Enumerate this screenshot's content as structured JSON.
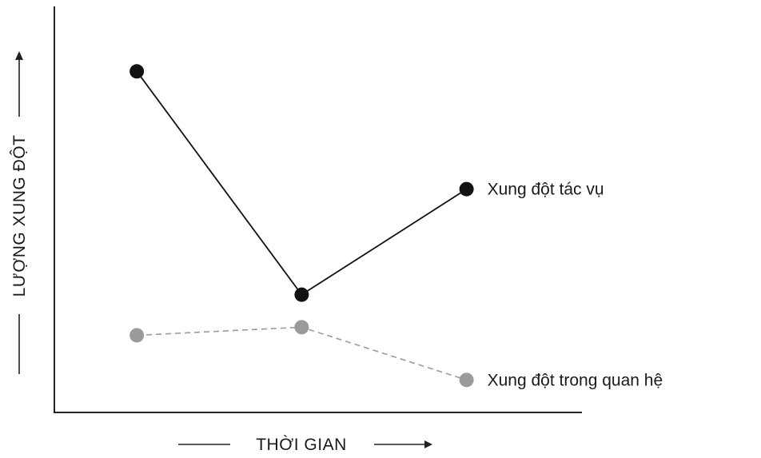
{
  "chart_data": {
    "type": "line",
    "title": "",
    "xlabel": "THỜI GIAN",
    "ylabel": "LƯỢNG XUNG ĐỘT",
    "x": [
      1,
      2,
      3
    ],
    "xlim": [
      0.5,
      3.7
    ],
    "ylim": [
      0,
      10
    ],
    "grid": false,
    "series": [
      {
        "name": "Xung đột tác vụ",
        "values": [
          8.4,
          2.9,
          5.5
        ],
        "color": "#111111",
        "line_style": "solid"
      },
      {
        "name": "Xung đột trong quan hệ",
        "values": [
          1.9,
          2.1,
          0.8
        ],
        "color": "#9a9a9a",
        "line_style": "dashed"
      }
    ]
  }
}
